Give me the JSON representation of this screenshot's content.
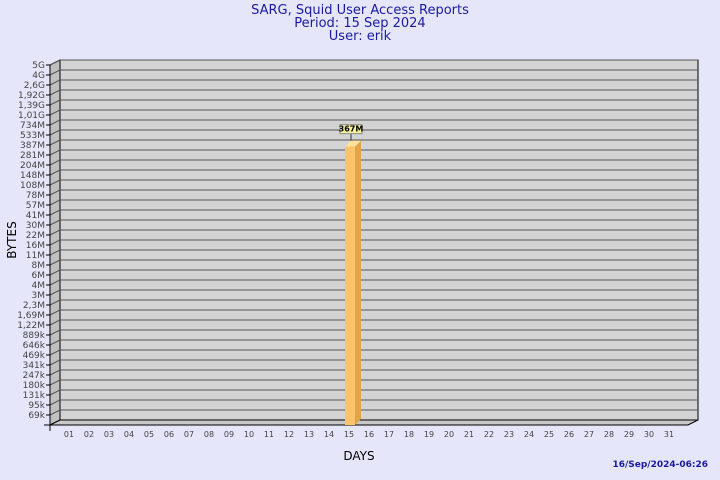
{
  "chart_data": {
    "type": "bar",
    "title": "SARG, Squid User Access Reports",
    "subtitle": [
      "Period: 15 Sep 2024",
      "User: erik"
    ],
    "xlabel": "DAYS",
    "ylabel": "BYTES",
    "yscale": "log",
    "ytick_labels": [
      "5G",
      "4G",
      "2,6G",
      "1,92G",
      "1,39G",
      "1,01G",
      "734M",
      "533M",
      "387M",
      "281M",
      "204M",
      "148M",
      "108M",
      "78M",
      "57M",
      "41M",
      "30M",
      "22M",
      "16M",
      "11M",
      "8M",
      "6M",
      "4M",
      "3M",
      "2,3M",
      "1,69M",
      "1,22M",
      "889k",
      "646k",
      "469k",
      "341k",
      "247k",
      "180k",
      "131k",
      "95k",
      "69k"
    ],
    "categories": [
      "01",
      "02",
      "03",
      "04",
      "05",
      "06",
      "07",
      "08",
      "09",
      "10",
      "11",
      "12",
      "13",
      "14",
      "15",
      "16",
      "17",
      "18",
      "19",
      "20",
      "21",
      "22",
      "23",
      "24",
      "25",
      "26",
      "27",
      "28",
      "29",
      "30",
      "31"
    ],
    "values": [
      null,
      null,
      null,
      null,
      null,
      null,
      null,
      null,
      null,
      null,
      null,
      null,
      null,
      null,
      367000000,
      null,
      null,
      null,
      null,
      null,
      null,
      null,
      null,
      null,
      null,
      null,
      null,
      null,
      null,
      null,
      null
    ],
    "data_labels": {
      "15": "367M"
    },
    "grid": true,
    "colors": {
      "background": "#e6e6fa",
      "wall": "#d3d3d3",
      "bar": "#f9c46b",
      "bar_side": "#e0a548",
      "title": "#1a1aa0"
    }
  },
  "footer": {
    "timestamp": "16/Sep/2024-06:26"
  }
}
